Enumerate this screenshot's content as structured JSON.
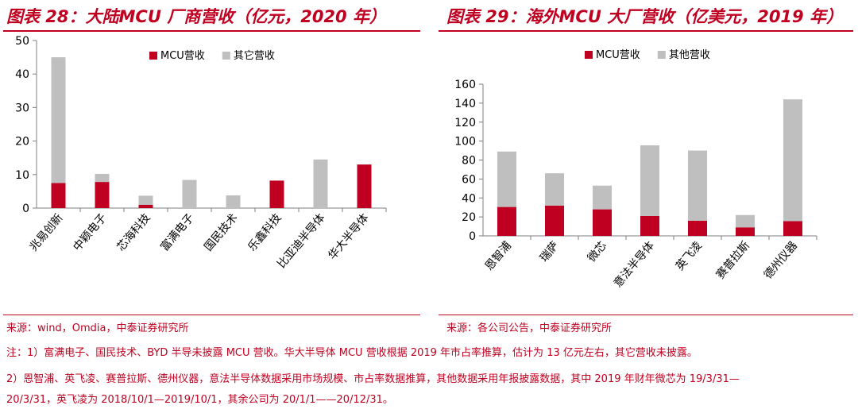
{
  "left_panel": {
    "title": "图表 28：大陆MCU 厂商营收（亿元，2020 年）",
    "source": "来源：wind，Omdia，中泰证券研究所"
  },
  "right_panel": {
    "title": "图表 29：海外MCU 大厂营收（亿美元，2019 年）",
    "source": "来源：各公司公告，中泰证券研究所"
  },
  "notes": {
    "line1": "注：1）富满电子、国民技术、BYD 半导未披露 MCU 营收。华大半导体 MCU 营收根据 2019 年市占率推算，估计为 13 亿元左右，其它营收未披露。",
    "line2": "2）恩智浦、英飞凌、赛普拉斯、德州仪器，意法半导体数据采用市场规模、市占率数据推算，其他数据采用年报披露数据，其中 2019 年财年微芯为 19/3/31—",
    "line3": "20/3/31，英飞凌为 2018/10/1—2019/10/1，其余公司为 20/1/1——20/12/31。"
  },
  "colors": {
    "mcu": "#c00020",
    "other": "#bfbfbf",
    "accent": "#c00020"
  },
  "chart_data": [
    {
      "type": "bar",
      "stacked": true,
      "categories": [
        "兆易创新",
        "中颖电子",
        "芯海科技",
        "富满电子",
        "国民技术",
        "乐鑫科技",
        "比亚迪半导体",
        "华大半导体"
      ],
      "series": [
        {
          "name": "MCU营收",
          "values": [
            7.5,
            7.8,
            1.0,
            0,
            0,
            8.2,
            0,
            13.0
          ]
        },
        {
          "name": "其它营收",
          "values": [
            37.5,
            2.4,
            2.7,
            8.4,
            3.8,
            0,
            14.5,
            0
          ]
        }
      ],
      "ylim": [
        0,
        50
      ],
      "yticks": [
        0,
        10,
        20,
        30,
        40,
        50
      ],
      "legend_position": "top-center",
      "grid": false
    },
    {
      "type": "bar",
      "stacked": true,
      "categories": [
        "恩智浦",
        "瑞萨",
        "微芯",
        "意法半导体",
        "英飞凌",
        "赛普拉斯",
        "德州仪器"
      ],
      "series": [
        {
          "name": "MCU营收",
          "values": [
            30.5,
            32.0,
            28.0,
            21.0,
            16.0,
            9.0,
            15.5
          ]
        },
        {
          "name": "其他营收",
          "values": [
            58.5,
            34.0,
            25.0,
            74.5,
            74.0,
            13.0,
            128.5
          ]
        }
      ],
      "ylim": [
        0,
        160
      ],
      "yticks": [
        0,
        20,
        40,
        60,
        80,
        100,
        120,
        140,
        160
      ],
      "legend_position": "top-center",
      "grid": false
    }
  ]
}
